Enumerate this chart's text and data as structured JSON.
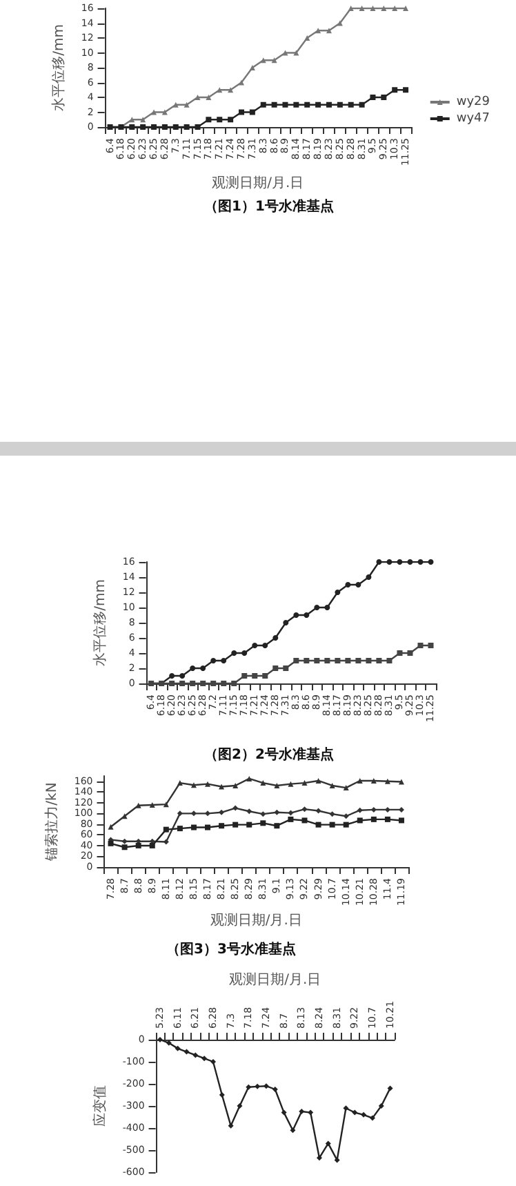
{
  "chart_data": [
    {
      "type": "line",
      "title": "（图1）1号水准基点",
      "xlabel": "观测日期/月.日",
      "ylabel": "水平位移/mm",
      "categories": [
        "6.4",
        "6.18",
        "6.20",
        "6.23",
        "6.25",
        "6.28",
        "7.3",
        "7.11",
        "7.15",
        "7.18",
        "7.21",
        "7.24",
        "7.28",
        "7.31",
        "8.3",
        "8.6",
        "8.9",
        "8.14",
        "8.17",
        "8.19",
        "8.23",
        "8.25",
        "8.28",
        "8.31",
        "9.5",
        "9.25",
        "10.3",
        "11.25"
      ],
      "ylim": [
        0,
        16
      ],
      "yticks": [
        0,
        2,
        4,
        6,
        8,
        10,
        12,
        14,
        16
      ],
      "grid": false,
      "legend": "right",
      "series": [
        {
          "name": "wy29",
          "color": "#777777",
          "marker": "triangle",
          "values": [
            0,
            0,
            1,
            1,
            2,
            2,
            3,
            3,
            4,
            4,
            5,
            5,
            6,
            8,
            9,
            9,
            10,
            10,
            12,
            13,
            13,
            14,
            16,
            16,
            16,
            16,
            16,
            16
          ]
        },
        {
          "name": "wy47",
          "color": "#222222",
          "marker": "square",
          "values": [
            0,
            0,
            0,
            0,
            0,
            0,
            0,
            0,
            0,
            1,
            1,
            1,
            2,
            2,
            3,
            3,
            3,
            3,
            3,
            3,
            3,
            3,
            3,
            3,
            4,
            4,
            5,
            5
          ]
        }
      ]
    },
    {
      "type": "line",
      "title": "（图2）2号水准基点",
      "ylabel": "水平位移/mm",
      "categories": [
        "6.4",
        "6.18",
        "6.20",
        "6.23",
        "6.25",
        "6.28",
        "7.2",
        "7.11",
        "7.15",
        "7.18",
        "7.21",
        "7.24",
        "7.28",
        "7.31",
        "8.3",
        "8.6",
        "8.9",
        "8.14",
        "8.17",
        "8.19",
        "8.23",
        "8.25",
        "8.28",
        "8.31",
        "9.5",
        "9.25",
        "10.3",
        "11.25"
      ],
      "ylim": [
        0,
        16
      ],
      "yticks": [
        0,
        2,
        4,
        6,
        8,
        10,
        12,
        14,
        16
      ],
      "grid": false,
      "series": [
        {
          "color": "#222222",
          "marker": "circle",
          "values": [
            0,
            0,
            1,
            1,
            2,
            2,
            3,
            3,
            4,
            4,
            5,
            5,
            6,
            8,
            9,
            9,
            10,
            10,
            12,
            13,
            13,
            14,
            16,
            16,
            16,
            16,
            16,
            16
          ]
        },
        {
          "color": "#444444",
          "marker": "square",
          "values": [
            0,
            0,
            0,
            0,
            0,
            0,
            0,
            0,
            0,
            1,
            1,
            1,
            2,
            2,
            3,
            3,
            3,
            3,
            3,
            3,
            3,
            3,
            3,
            3,
            4,
            4,
            5,
            5
          ]
        }
      ]
    },
    {
      "type": "line",
      "title": "（图3）3号水准基点",
      "xlabel": "观测日期/月.日",
      "ylabel": "锚索拉力/kN",
      "categories": [
        "7.28",
        "8.7",
        "8.8",
        "8.9",
        "8.11",
        "8.12",
        "8.15",
        "8.17",
        "8.21",
        "8.25",
        "8.29",
        "8.31",
        "9.1",
        "9.13",
        "9.22",
        "9.29",
        "10.7",
        "10.14",
        "10.21",
        "10.28",
        "11.4",
        "11.19"
      ],
      "ylim": [
        0,
        170
      ],
      "yticks": [
        0,
        20,
        40,
        60,
        80,
        100,
        120,
        140,
        160
      ],
      "grid": false,
      "series": [
        {
          "color": "#333333",
          "marker": "triangle",
          "values": [
            75,
            95,
            115,
            116,
            117,
            157,
            153,
            155,
            150,
            152,
            165,
            157,
            152,
            155,
            157,
            161,
            152,
            148,
            161,
            161,
            160,
            159
          ]
        },
        {
          "color": "#333333",
          "marker": "diamond",
          "values": [
            51,
            48,
            48,
            48,
            47,
            100,
            100,
            100,
            102,
            110,
            104,
            99,
            102,
            101,
            108,
            105,
            99,
            95,
            106,
            107,
            107,
            107
          ]
        },
        {
          "color": "#222222",
          "marker": "square",
          "values": [
            44,
            37,
            40,
            40,
            70,
            72,
            74,
            74,
            77,
            79,
            79,
            82,
            77,
            89,
            87,
            79,
            79,
            79,
            87,
            89,
            89,
            87
          ]
        }
      ]
    },
    {
      "type": "line",
      "x2label": "观测日期/月.日",
      "ylabel": "应变值",
      "categories": [
        "5.23",
        null,
        "6.11",
        null,
        "6.21",
        null,
        "6.28",
        null,
        "7.3",
        null,
        "7.18",
        null,
        "7.24",
        null,
        "8.7",
        null,
        "8.13",
        null,
        "8.24",
        null,
        "8.31",
        null,
        "9.22",
        null,
        "10.7",
        null,
        "10.21"
      ],
      "ylim": [
        -600,
        0
      ],
      "yticks": [
        -600,
        -500,
        -400,
        -300,
        -200,
        -100,
        0
      ],
      "grid": false,
      "series": [
        {
          "color": "#222222",
          "marker": "diamond",
          "values": [
            0,
            -15,
            -40,
            -55,
            -70,
            -85,
            -100,
            -250,
            -390,
            -300,
            -215,
            -212,
            -210,
            -225,
            -330,
            -410,
            -325,
            -330,
            -535,
            -470,
            -545,
            -310,
            -330,
            -340,
            -355,
            -300,
            -220
          ]
        }
      ]
    }
  ]
}
